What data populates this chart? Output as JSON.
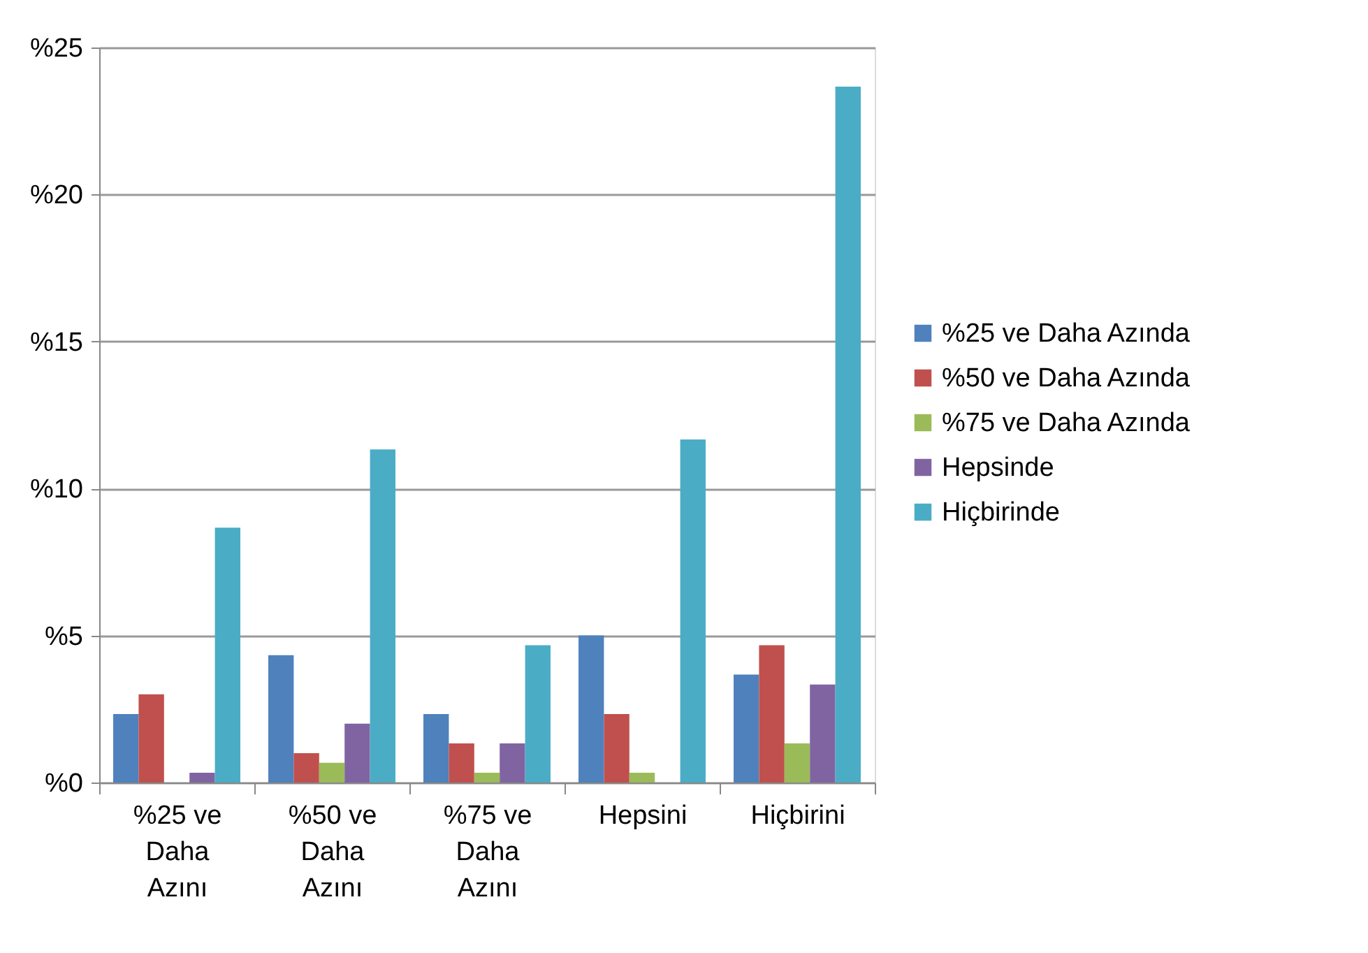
{
  "chart_data": {
    "type": "bar",
    "categories": [
      "%25 ve Daha Azını",
      "%50 ve Daha Azını",
      "%75 ve Daha Azını",
      "Hepsini",
      "Hiçbirini"
    ],
    "series": [
      {
        "name": "%25 ve Daha Azında",
        "color": "#4f81bd",
        "values": [
          2.33,
          4.33,
          2.33,
          5.0,
          3.67
        ]
      },
      {
        "name": "%50 ve Daha Azında",
        "color": "#c0504d",
        "values": [
          3.0,
          1.0,
          1.33,
          2.33,
          4.67
        ]
      },
      {
        "name": "%75 ve Daha Azında",
        "color": "#9bbb59",
        "values": [
          0,
          0.67,
          0.33,
          0.33,
          1.33
        ]
      },
      {
        "name": "Hepsinde",
        "color": "#8064a2",
        "values": [
          0.33,
          2.0,
          1.33,
          0,
          3.33
        ]
      },
      {
        "name": "Hiçbirinde",
        "color": "#4bacc6",
        "values": [
          8.67,
          11.33,
          4.67,
          11.67,
          23.67
        ]
      }
    ],
    "ylim": [
      0,
      25
    ],
    "yticks": [
      {
        "value": 0,
        "label": "%0"
      },
      {
        "value": 5,
        "label": "%5"
      },
      {
        "value": 10,
        "label": "%10"
      },
      {
        "value": 15,
        "label": "%15"
      },
      {
        "value": 20,
        "label": "%20"
      },
      {
        "value": 25,
        "label": "%25"
      }
    ],
    "grid": "y",
    "legend": "right"
  }
}
